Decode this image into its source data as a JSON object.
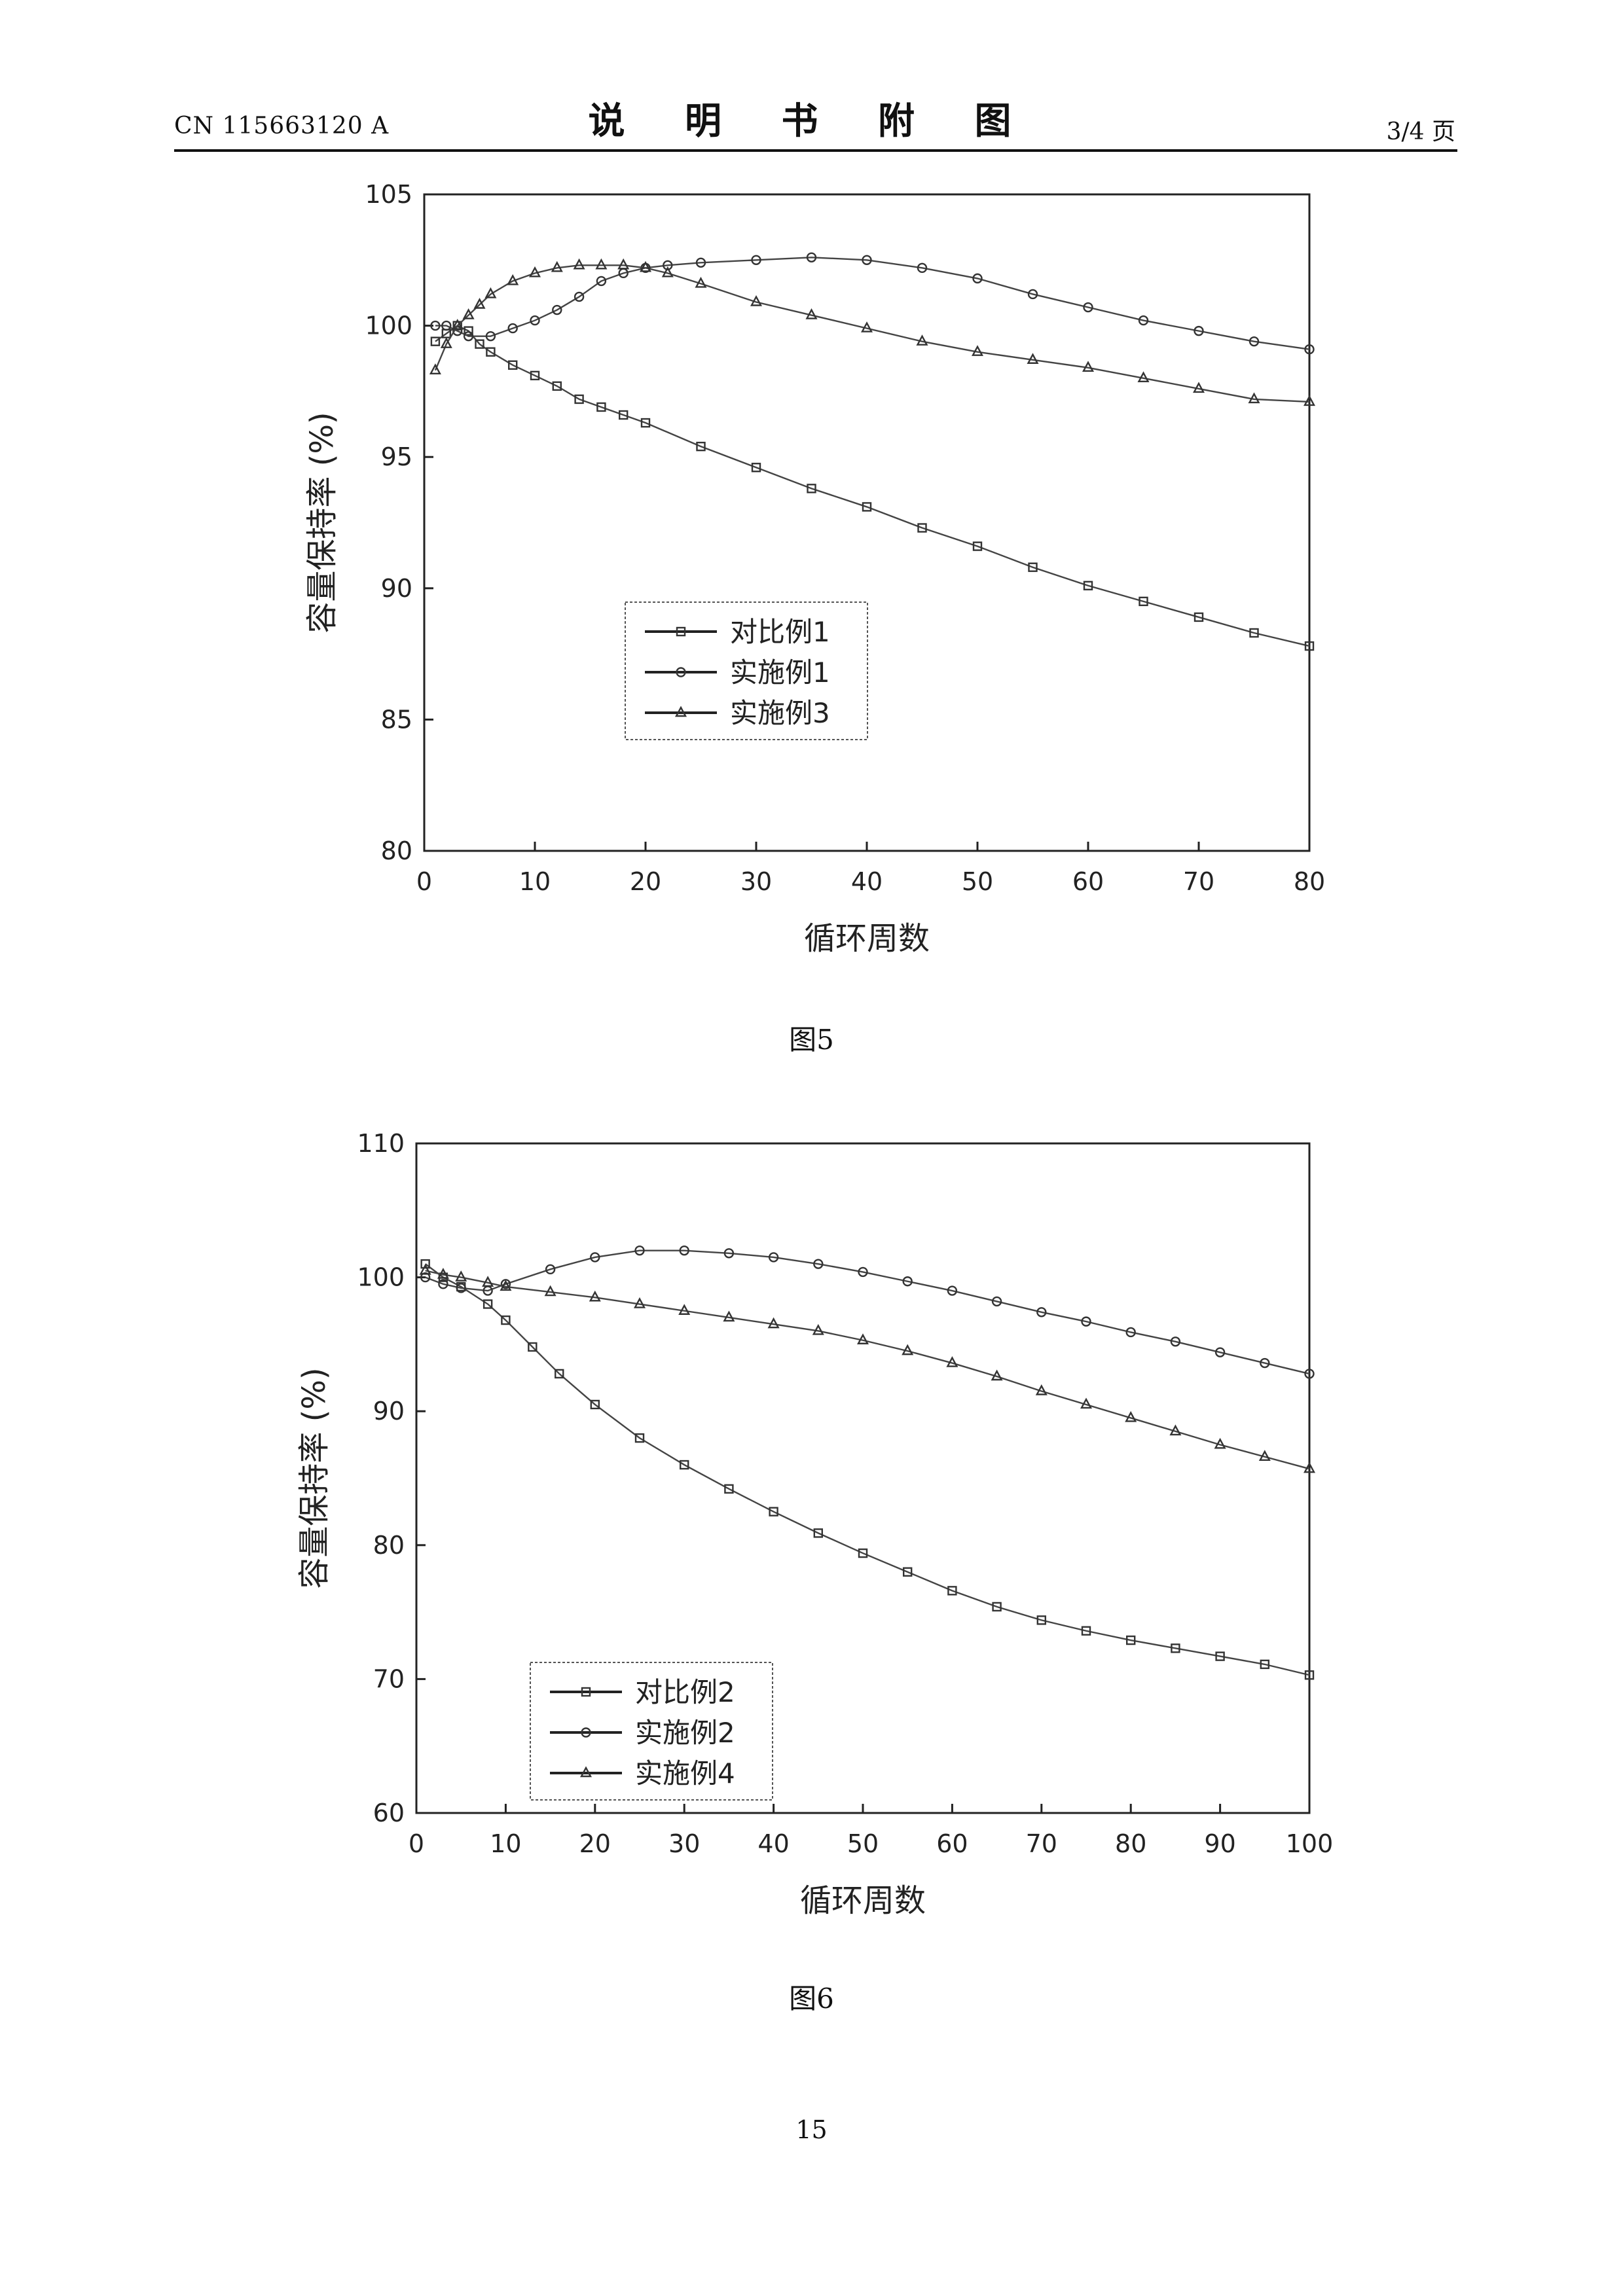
{
  "header": {
    "doc_number": "CN 115663120 A",
    "title": "说 明 书 附 图",
    "page_indicator": "3/4 页"
  },
  "figures": [
    {
      "caption": "图5"
    },
    {
      "caption": "图6"
    }
  ],
  "footer": {
    "page_number": "15"
  },
  "chart_data": [
    {
      "type": "line",
      "title": "",
      "xlabel": "循环周数",
      "ylabel": "容量保持率 (%)",
      "xlim": [
        0,
        80
      ],
      "ylim": [
        80,
        105
      ],
      "xticks": [
        0,
        10,
        20,
        30,
        40,
        50,
        60,
        70,
        80
      ],
      "yticks": [
        80,
        85,
        90,
        95,
        100,
        105
      ],
      "grid": false,
      "legend_position": "center-left",
      "series": [
        {
          "name": "对比例1",
          "marker": "square",
          "x": [
            1,
            2,
            3,
            4,
            5,
            6,
            8,
            10,
            12,
            14,
            16,
            18,
            20,
            25,
            30,
            35,
            40,
            45,
            50,
            55,
            60,
            65,
            70,
            75,
            80
          ],
          "y": [
            99.4,
            99.7,
            100.0,
            99.8,
            99.3,
            99.0,
            98.5,
            98.1,
            97.7,
            97.2,
            96.9,
            96.6,
            96.3,
            95.4,
            94.6,
            93.8,
            93.1,
            92.3,
            91.6,
            90.8,
            90.1,
            89.5,
            88.9,
            88.3,
            87.8
          ]
        },
        {
          "name": "实施例1",
          "marker": "circle",
          "x": [
            1,
            2,
            3,
            4,
            6,
            8,
            10,
            12,
            14,
            16,
            18,
            20,
            22,
            25,
            30,
            35,
            40,
            45,
            50,
            55,
            60,
            65,
            70,
            75,
            80
          ],
          "y": [
            100.0,
            100.0,
            99.8,
            99.6,
            99.6,
            99.9,
            100.2,
            100.6,
            101.1,
            101.7,
            102.0,
            102.2,
            102.3,
            102.4,
            102.5,
            102.6,
            102.5,
            102.2,
            101.8,
            101.2,
            100.7,
            100.2,
            99.8,
            99.4,
            99.1
          ]
        },
        {
          "name": "实施例3",
          "marker": "triangle",
          "x": [
            1,
            2,
            3,
            4,
            5,
            6,
            8,
            10,
            12,
            14,
            16,
            18,
            20,
            22,
            25,
            30,
            35,
            40,
            45,
            50,
            55,
            60,
            65,
            70,
            75,
            80
          ],
          "y": [
            98.3,
            99.3,
            100.0,
            100.4,
            100.8,
            101.2,
            101.7,
            102.0,
            102.2,
            102.3,
            102.3,
            102.3,
            102.2,
            102.0,
            101.6,
            100.9,
            100.4,
            99.9,
            99.4,
            99.0,
            98.7,
            98.4,
            98.0,
            97.6,
            97.2,
            97.1
          ]
        }
      ]
    },
    {
      "type": "line",
      "title": "",
      "xlabel": "循环周数",
      "ylabel": "容量保持率 (%)",
      "xlim": [
        0,
        100
      ],
      "ylim": [
        60,
        110
      ],
      "xticks": [
        0,
        10,
        20,
        30,
        40,
        50,
        60,
        70,
        80,
        90,
        100
      ],
      "yticks": [
        60,
        70,
        80,
        90,
        100,
        110
      ],
      "grid": false,
      "legend_position": "bottom-left",
      "series": [
        {
          "name": "对比例2",
          "marker": "square",
          "x": [
            1,
            3,
            5,
            8,
            10,
            13,
            16,
            20,
            25,
            30,
            35,
            40,
            45,
            50,
            55,
            60,
            65,
            70,
            75,
            80,
            85,
            90,
            95,
            100
          ],
          "y": [
            101.0,
            100.0,
            99.3,
            98.0,
            96.8,
            94.8,
            92.8,
            90.5,
            88.0,
            86.0,
            84.2,
            82.5,
            80.9,
            79.4,
            78.0,
            76.6,
            75.4,
            74.4,
            73.6,
            72.9,
            72.3,
            71.7,
            71.1,
            70.3
          ]
        },
        {
          "name": "实施例2",
          "marker": "circle",
          "x": [
            1,
            3,
            5,
            8,
            10,
            15,
            20,
            25,
            30,
            35,
            40,
            45,
            50,
            55,
            60,
            65,
            70,
            75,
            80,
            85,
            90,
            95,
            100
          ],
          "y": [
            100.0,
            99.5,
            99.2,
            99.0,
            99.5,
            100.6,
            101.5,
            102.0,
            102.0,
            101.8,
            101.5,
            101.0,
            100.4,
            99.7,
            99.0,
            98.2,
            97.4,
            96.7,
            95.9,
            95.2,
            94.4,
            93.6,
            92.8
          ]
        },
        {
          "name": "实施例4",
          "marker": "triangle",
          "x": [
            1,
            3,
            5,
            8,
            10,
            15,
            20,
            25,
            30,
            35,
            40,
            45,
            50,
            55,
            60,
            65,
            70,
            75,
            80,
            85,
            90,
            95,
            100
          ],
          "y": [
            100.5,
            100.2,
            100.0,
            99.6,
            99.3,
            98.9,
            98.5,
            98.0,
            97.5,
            97.0,
            96.5,
            96.0,
            95.3,
            94.5,
            93.6,
            92.6,
            91.5,
            90.5,
            89.5,
            88.5,
            87.5,
            86.6,
            85.7
          ]
        }
      ]
    }
  ]
}
